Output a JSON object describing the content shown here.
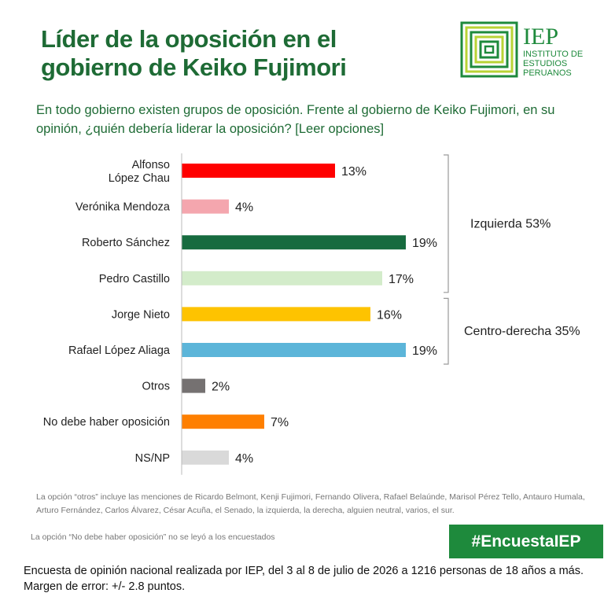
{
  "header": {
    "title_line1": "Líder de la oposición en el",
    "title_line2": "gobierno de Keiko Fujimori",
    "logo_acronym": "IEP",
    "logo_line1": "INSTITUTO DE",
    "logo_line2": "ESTUDIOS",
    "logo_line3": "PERUANOS",
    "brand_color": "#1e8a3c"
  },
  "question": "En todo gobierno existen grupos de oposición. Frente al gobierno de Keiko Fujimori, en su opinión, ¿quién debería liderar la oposición? [Leer opciones]",
  "chart_data": {
    "type": "bar",
    "orientation": "horizontal",
    "categories": [
      [
        "Alfonso",
        "López Chau"
      ],
      [
        "Verónika Mendoza"
      ],
      [
        "Roberto Sánchez"
      ],
      [
        "Pedro Castillo"
      ],
      [
        "Jorge Nieto"
      ],
      [
        "Rafael López Aliaga"
      ],
      [
        "Otros"
      ],
      [
        "No debe haber oposición"
      ],
      [
        "NS/NP"
      ]
    ],
    "values": [
      13,
      4,
      19,
      17,
      16,
      19,
      2,
      7,
      4
    ],
    "value_suffix": "%",
    "colors": [
      "#ff0000",
      "#f4a6ae",
      "#176b3f",
      "#d3ecca",
      "#fec300",
      "#5cb5d9",
      "#757171",
      "#fe7f00",
      "#d9d9d9"
    ],
    "groups": [
      {
        "label": "Izquierda 53%",
        "from": 0,
        "to": 3
      },
      {
        "label": "Centro-derecha 35%",
        "from": 4,
        "to": 5
      }
    ]
  },
  "notes": {
    "otros": "La opción “otros” incluye las menciones de Ricardo Belmont, Kenji Fujimori, Fernando Olivera, Rafael Belaúnde, Marisol Pérez Tello, Antauro Humala, Arturo Fernández, Carlos Álvarez, César Acuña, el Senado, la izquierda, la derecha, alguien neutral, varios, el sur.",
    "no_oposicion": "La opción “No debe haber oposición” no se leyó a los encuestados"
  },
  "hashtag": "#EncuestaIEP",
  "footer": "Encuesta de opinión nacional realizada por IEP, del 3 al 8 de julio de 2026 a 1216 personas de 18 años a más. Margen de error: +/- 2.8 puntos."
}
